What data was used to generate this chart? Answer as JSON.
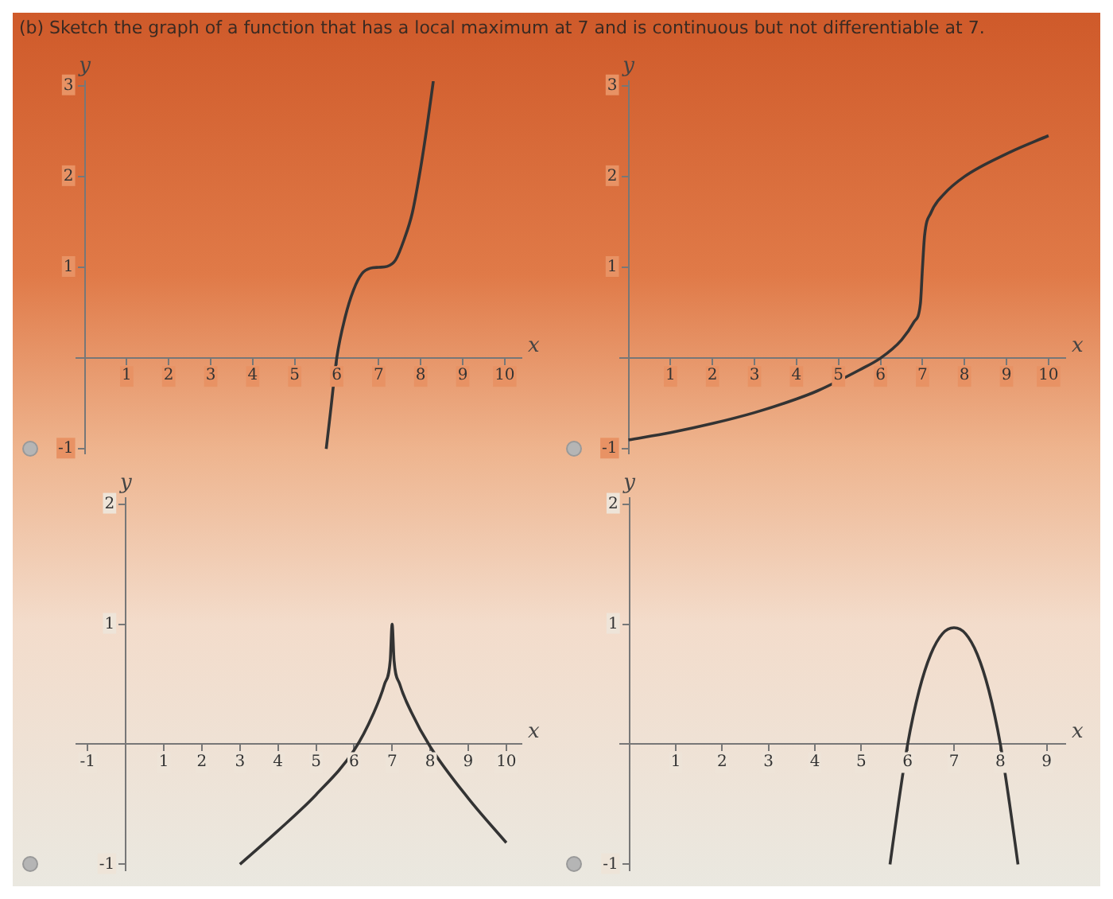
{
  "chart_data": [
    {
      "type": "line",
      "title": "(b) Sketch the graph of a function that has a local maximum at 7 and is continuous but not differentiable at 7.",
      "xlabel": "x",
      "ylabel": "y",
      "xlim": [
        -0.2,
        10.4
      ],
      "ylim": [
        -1.05,
        3.05
      ],
      "xticks": [
        1,
        2,
        3,
        4,
        5,
        6,
        7,
        8,
        9,
        10
      ],
      "yticks": [
        -1,
        1,
        2,
        3
      ],
      "grid": false,
      "legend": false,
      "marker": "none",
      "line_style": "solid",
      "series": [
        {
          "color": "#333333",
          "x": [
            5.75,
            5.85,
            6,
            6.2,
            6.4,
            6.6,
            6.8,
            7,
            7.2,
            7.4,
            7.6,
            7.8,
            8,
            8.15,
            8.3
          ],
          "values": [
            -1,
            -0.6,
            0,
            0.45,
            0.75,
            0.93,
            0.99,
            1,
            1.01,
            1.08,
            1.3,
            1.6,
            2.1,
            2.55,
            3.05
          ]
        }
      ]
    },
    {
      "type": "line",
      "xlabel": "x",
      "ylabel": "y",
      "xlim": [
        -0.2,
        10.4
      ],
      "ylim": [
        -1.05,
        3.05
      ],
      "xticks": [
        1,
        2,
        3,
        4,
        5,
        6,
        7,
        8,
        9,
        10
      ],
      "yticks": [
        -1,
        1,
        2,
        3
      ],
      "grid": false,
      "legend": false,
      "marker": "none",
      "line_style": "solid",
      "series": [
        {
          "color": "#333333",
          "x": [
            0,
            1,
            2,
            3,
            4,
            4.5,
            5.5,
            6,
            6.5,
            6.8,
            6.95,
            7,
            7.05,
            7.2,
            7.5,
            8,
            9,
            10
          ],
          "values": [
            -0.9,
            -0.82,
            -0.72,
            -0.6,
            -0.45,
            -0.36,
            -0.13,
            0,
            0.2,
            0.4,
            0.6,
            1,
            1.35,
            1.6,
            1.8,
            2,
            2.25,
            2.45
          ]
        }
      ]
    },
    {
      "type": "line",
      "xlabel": "x",
      "ylabel": "y",
      "xlim": [
        -1.3,
        10.4
      ],
      "ylim": [
        -1.05,
        2.05
      ],
      "xticks": [
        -1,
        1,
        2,
        3,
        4,
        5,
        6,
        7,
        8,
        9,
        10
      ],
      "yticks": [
        -1,
        1,
        2
      ],
      "grid": false,
      "legend": false,
      "marker": "none",
      "line_style": "solid",
      "series": [
        {
          "color": "#333333",
          "x": [
            3,
            4,
            5,
            6,
            6.5,
            6.8,
            6.95,
            7,
            7.05,
            7.2,
            7.5,
            8,
            9,
            10
          ],
          "values": [
            -1,
            -0.72,
            -0.42,
            -0.05,
            0.25,
            0.5,
            0.7,
            1,
            0.7,
            0.5,
            0.27,
            -0.02,
            -0.45,
            -0.82
          ]
        }
      ]
    },
    {
      "type": "line",
      "xlabel": "x",
      "ylabel": "y",
      "xlim": [
        -0.2,
        9.4
      ],
      "ylim": [
        -1.05,
        2.05
      ],
      "xticks": [
        1,
        2,
        3,
        4,
        5,
        6,
        7,
        8,
        9
      ],
      "yticks": [
        -1,
        1,
        2
      ],
      "grid": false,
      "legend": false,
      "marker": "none",
      "line_style": "solid",
      "series": [
        {
          "color": "#333333",
          "x": [
            5.62,
            5.8,
            6,
            6.25,
            6.5,
            6.75,
            7,
            7.25,
            7.5,
            7.75,
            8,
            8.2,
            8.38
          ],
          "values": [
            -1,
            -0.5,
            0,
            0.45,
            0.75,
            0.92,
            0.97,
            0.92,
            0.75,
            0.45,
            0,
            -0.5,
            -1
          ]
        }
      ]
    }
  ]
}
